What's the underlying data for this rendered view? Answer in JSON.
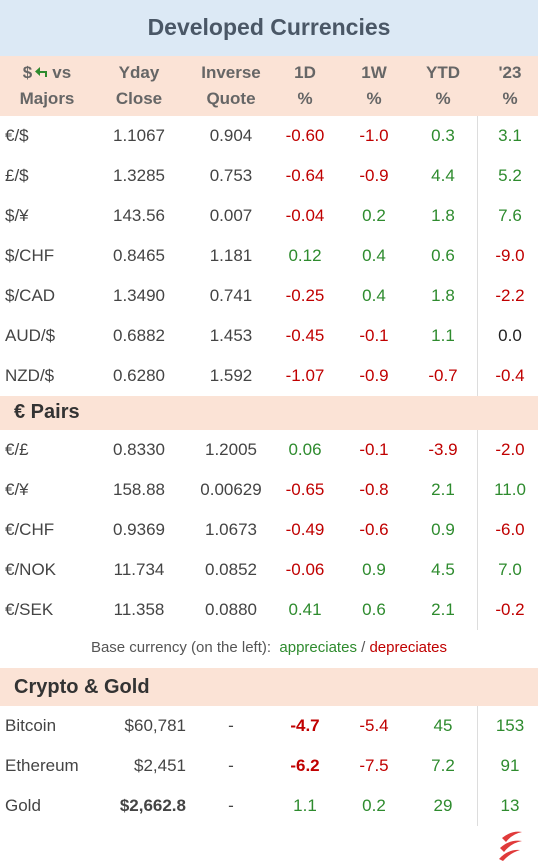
{
  "title": "Developed Currencies",
  "header": {
    "first": {
      "symbol": "$",
      "vs": "vs",
      "line2": "Majors"
    },
    "columns": [
      [
        "Yday",
        "Close"
      ],
      [
        "Inverse",
        "Quote"
      ],
      [
        "1D",
        "%"
      ],
      [
        "1W",
        "%"
      ],
      [
        "YTD",
        "%"
      ],
      [
        "'23",
        "%"
      ]
    ]
  },
  "majors": {
    "rows": [
      [
        "€/$",
        "1.1067",
        "0.904",
        "-0.60",
        "-1.0",
        "0.3",
        "3.1"
      ],
      [
        "£/$",
        "1.3285",
        "0.753",
        "-0.64",
        "-0.9",
        "4.4",
        "5.2"
      ],
      [
        "$/¥",
        "143.56",
        "0.007",
        "-0.04",
        "0.2",
        "1.8",
        "7.6"
      ],
      [
        "$/CHF",
        "0.8465",
        "1.181",
        "0.12",
        "0.4",
        "0.6",
        "-9.0"
      ],
      [
        "$/CAD",
        "1.3490",
        "0.741",
        "-0.25",
        "0.4",
        "1.8",
        "-2.2"
      ],
      [
        "AUD/$",
        "0.6882",
        "1.453",
        "-0.45",
        "-0.1",
        "1.1",
        "0.0"
      ],
      [
        "NZD/$",
        "0.6280",
        "1.592",
        "-1.07",
        "-0.9",
        "-0.7",
        "-0.4"
      ]
    ]
  },
  "pairs": {
    "title": "€ Pairs",
    "rows": [
      [
        "€/£",
        "0.8330",
        "1.2005",
        "0.06",
        "-0.1",
        "-3.9",
        "-2.0"
      ],
      [
        "€/¥",
        "158.88",
        "0.00629",
        "-0.65",
        "-0.8",
        "2.1",
        "11.0"
      ],
      [
        "€/CHF",
        "0.9369",
        "1.0673",
        "-0.49",
        "-0.6",
        "0.9",
        "-6.0"
      ],
      [
        "€/NOK",
        "11.734",
        "0.0852",
        "-0.06",
        "0.9",
        "4.5",
        "7.0"
      ],
      [
        "€/SEK",
        "11.358",
        "0.0880",
        "0.41",
        "0.6",
        "2.1",
        "-0.2"
      ]
    ]
  },
  "footnote": {
    "lead": "Base currency (on the left):",
    "up": "appreciates",
    "sep": "/",
    "down": "depreciates"
  },
  "crypto": {
    "title": "Crypto & Gold",
    "rows": [
      {
        "cells": [
          "Bitcoin",
          "$60,781",
          "-",
          "-4.7",
          "-5.4",
          "45",
          "153"
        ],
        "bold": [
          3
        ]
      },
      {
        "cells": [
          "Ethereum",
          "$2,451",
          "-",
          "-6.2",
          "-7.5",
          "7.2",
          "91"
        ],
        "bold": [
          3
        ]
      },
      {
        "cells": [
          "Gold",
          "$2,662.8",
          "-",
          "1.1",
          "0.2",
          "29",
          "13"
        ],
        "bold": [
          1
        ]
      }
    ]
  }
}
